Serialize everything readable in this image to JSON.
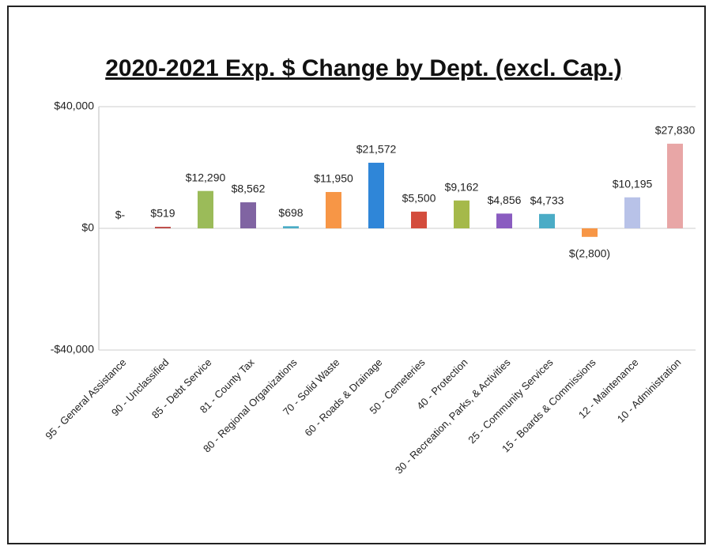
{
  "chart_data": {
    "type": "bar",
    "title": "2020-2021 Exp. $ Change by Dept. (excl. Cap.)",
    "categories": [
      "95 - General Assistance",
      "90 - Unclassified",
      "85 - Debt Service",
      "81 - County Tax",
      "80 - Regional Organizations",
      "70 - Solid Waste",
      "60 - Roads & Drainage",
      "50 - Cemeteries",
      "40 - Protection",
      "30 - Recreation, Parks, & Activities",
      "25 - Community Services",
      "15 - Boards & Commissions",
      "12 - Maintenance",
      "10 - Administration"
    ],
    "values": [
      0,
      519,
      12290,
      8562,
      698,
      11950,
      21572,
      5500,
      9162,
      4856,
      4733,
      -2800,
      10195,
      27830
    ],
    "value_labels": [
      "$-",
      "$519",
      "$12,290",
      "$8,562",
      "$698",
      "$11,950",
      "$21,572",
      "$5,500",
      "$9,162",
      "$4,856",
      "$4,733",
      "$(2,800)",
      "$10,195",
      "$27,830"
    ],
    "colors": [
      "#c0504d",
      "#c0504d",
      "#9bbb59",
      "#8064a2",
      "#4bacc6",
      "#f79646",
      "#2f86d8",
      "#d34c3c",
      "#a5b94a",
      "#8a5cc0",
      "#4bacc6",
      "#f79646",
      "#b8c2e8",
      "#e8a6a6"
    ],
    "ylim": [
      -40000,
      40000
    ],
    "yticks": [
      {
        "value": 40000,
        "label": "$40,000"
      },
      {
        "value": 0,
        "label": "$0"
      },
      {
        "value": -40000,
        "label": "-$40,000"
      }
    ],
    "grid": true
  }
}
